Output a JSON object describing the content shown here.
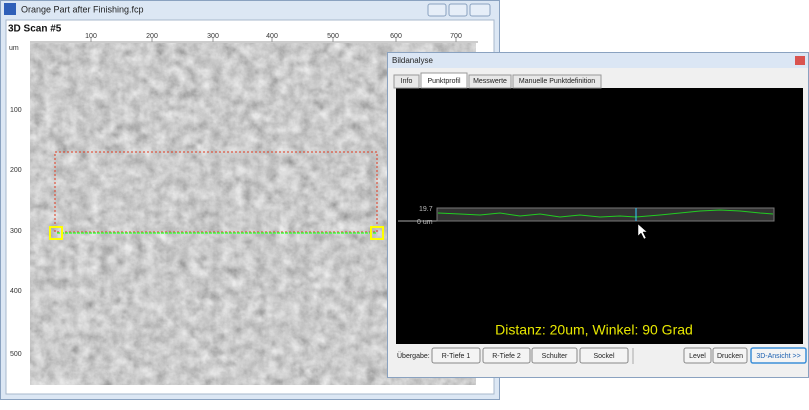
{
  "main_window": {
    "title": "Orange Part after Finishing.fcp",
    "scan_label": "3D Scan #5",
    "unit_label": "um",
    "top_ruler": [
      "100",
      "200",
      "300",
      "400",
      "500",
      "600",
      "700"
    ],
    "left_ruler": [
      "100",
      "200",
      "300",
      "400",
      "500"
    ]
  },
  "analysis_window": {
    "title": "Bildanalyse",
    "tabs": [
      "Info",
      "Punktprofil",
      "Messwerte",
      "Manuelle Punktdefinition"
    ],
    "profile_top_label": "19.7",
    "profile_zero_label": "0 um",
    "result_text": "Distanz: 20um, Winkel: 90 Grad",
    "transfer_label": "Übergabe:",
    "left_buttons": [
      "R-Tiefe 1",
      "R-Tiefe 2",
      "Schulter",
      "Sockel"
    ],
    "right_buttons": [
      "Level",
      "Drucken",
      "3D-Ansicht >>"
    ]
  }
}
